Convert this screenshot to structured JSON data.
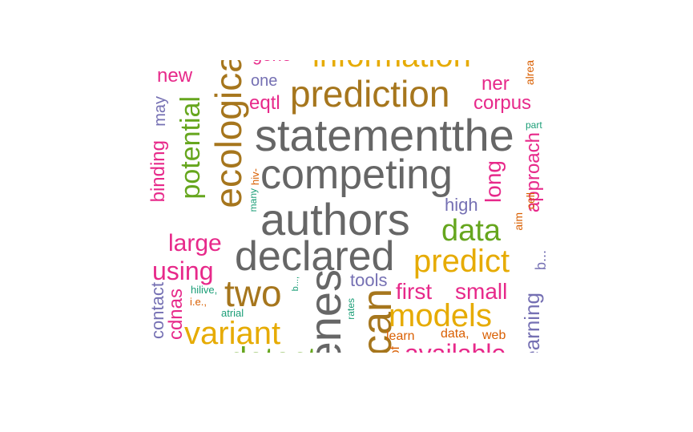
{
  "palette": {
    "gray": "#666666",
    "brown": "#A6761D",
    "gold": "#E6AB02",
    "pink": "#E7298A",
    "purple": "#7570B3",
    "green": "#66A61E",
    "teal": "#1B9E77",
    "orange": "#D95F02"
  },
  "words": [
    {
      "text": "information",
      "color": "gold"
    },
    {
      "text": "gene",
      "color": "pink"
    },
    {
      "text": "alrea",
      "color": "orange"
    },
    {
      "text": "new",
      "color": "pink"
    },
    {
      "text": "one",
      "color": "purple"
    },
    {
      "text": "prediction",
      "color": "brown"
    },
    {
      "text": "ner",
      "color": "pink"
    },
    {
      "text": "ecological",
      "color": "brown"
    },
    {
      "text": "eqtl",
      "color": "pink"
    },
    {
      "text": "corpus",
      "color": "pink"
    },
    {
      "text": "may",
      "color": "purple"
    },
    {
      "text": "statementthe",
      "color": "gray"
    },
    {
      "text": "part",
      "color": "teal"
    },
    {
      "text": "potential",
      "color": "green"
    },
    {
      "text": "approach",
      "color": "pink"
    },
    {
      "text": "binding",
      "color": "pink"
    },
    {
      "text": "competing",
      "color": "gray"
    },
    {
      "text": "hiv-",
      "color": "orange"
    },
    {
      "text": "long",
      "color": "pink"
    },
    {
      "text": "many",
      "color": "teal"
    },
    {
      "text": "authors",
      "color": "gray"
    },
    {
      "text": "high",
      "color": "purple"
    },
    {
      "text": "cell",
      "color": "orange"
    },
    {
      "text": "aim",
      "color": "orange"
    },
    {
      "text": "large",
      "color": "pink"
    },
    {
      "text": "data",
      "color": "green"
    },
    {
      "text": "declared",
      "color": "gray"
    },
    {
      "text": "predict",
      "color": "gold"
    },
    {
      "text": "using",
      "color": "pink"
    },
    {
      "text": "b...",
      "color": "purple"
    },
    {
      "text": "genes",
      "color": "gray"
    },
    {
      "text": "two",
      "color": "brown"
    },
    {
      "text": "tools",
      "color": "purple"
    },
    {
      "text": "contact",
      "color": "purple"
    },
    {
      "text": "cdnas",
      "color": "pink"
    },
    {
      "text": "hilive,",
      "color": "teal"
    },
    {
      "text": "i.e.,",
      "color": "orange"
    },
    {
      "text": "b...,",
      "color": "teal"
    },
    {
      "text": "can",
      "color": "brown"
    },
    {
      "text": "first",
      "color": "pink"
    },
    {
      "text": "small",
      "color": "pink"
    },
    {
      "text": "learning",
      "color": "purple"
    },
    {
      "text": "rates",
      "color": "teal"
    },
    {
      "text": "atrial",
      "color": "teal"
    },
    {
      "text": "models",
      "color": "gold"
    },
    {
      "text": "variant",
      "color": "gold"
    },
    {
      "text": "data,",
      "color": "orange"
    },
    {
      "text": "web",
      "color": "orange"
    },
    {
      "text": "learn",
      "color": "orange"
    },
    {
      "text": "available",
      "color": "pink"
    },
    {
      "text": "detect",
      "color": "green"
    },
    {
      "text": "of",
      "color": "orange"
    }
  ]
}
